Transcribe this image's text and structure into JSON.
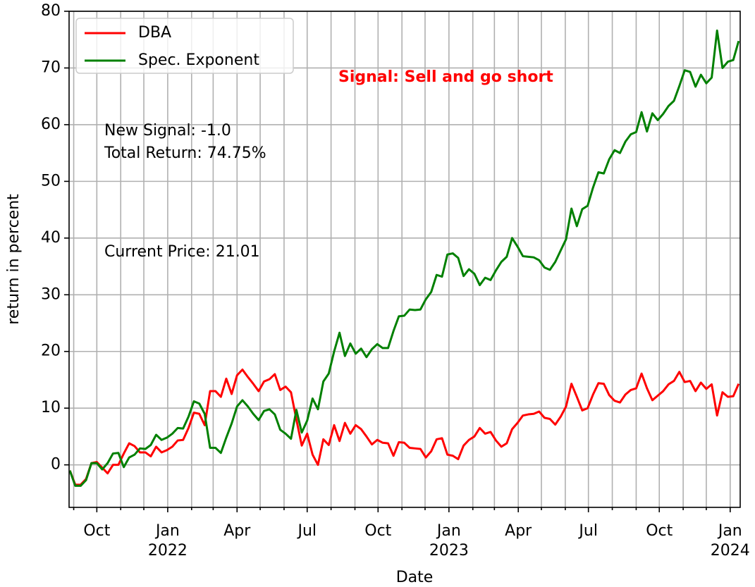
{
  "chart_data": {
    "type": "line",
    "xlabel": "Date",
    "ylabel": "return in percent",
    "legend": "upper left",
    "grid": true,
    "annotations": [
      {
        "text": "Signal: Sell and go short",
        "color": "#ff0000",
        "bold": true
      },
      {
        "text": "New Signal: -1.0"
      },
      {
        "text": "Total Return: 74.75%"
      },
      {
        "text": "Current Price: 21.01"
      }
    ],
    "xlim": [
      "2021-08-26",
      "2024-01-14"
    ],
    "ylim": [
      -7.5,
      80
    ],
    "yticks": [
      0,
      10,
      20,
      30,
      40,
      50,
      60,
      70,
      80
    ],
    "xticks": [
      {
        "value": "2021-10-01",
        "label": "Oct"
      },
      {
        "value": "2022-01-01",
        "label": "Jan",
        "year": "2022"
      },
      {
        "value": "2022-04-01",
        "label": "Apr"
      },
      {
        "value": "2022-07-01",
        "label": "Jul"
      },
      {
        "value": "2022-10-01",
        "label": "Oct"
      },
      {
        "value": "2023-01-01",
        "label": "Jan",
        "year": "2023"
      },
      {
        "value": "2023-04-01",
        "label": "Apr"
      },
      {
        "value": "2023-07-01",
        "label": "Jul"
      },
      {
        "value": "2023-10-01",
        "label": "Oct"
      },
      {
        "value": "2024-01-01",
        "label": "Jan",
        "year": "2024"
      }
    ],
    "xminor": [
      "2021-09-01",
      "2021-11-01",
      "2021-12-01",
      "2022-02-01",
      "2022-03-01",
      "2022-05-01",
      "2022-06-01",
      "2022-08-01",
      "2022-09-01",
      "2022-11-01",
      "2022-12-01",
      "2023-02-01",
      "2023-03-01",
      "2023-05-01",
      "2023-06-01",
      "2023-08-01",
      "2023-09-01",
      "2023-11-01",
      "2023-12-01"
    ],
    "x": [
      "2021-08-27",
      "2021-09-03",
      "2021-09-10",
      "2021-09-17",
      "2021-09-24",
      "2021-10-01",
      "2021-10-08",
      "2021-10-15",
      "2021-10-22",
      "2021-10-29",
      "2021-11-05",
      "2021-11-12",
      "2021-11-19",
      "2021-11-26",
      "2021-12-03",
      "2021-12-10",
      "2021-12-17",
      "2021-12-24",
      "2021-12-31",
      "2022-01-07",
      "2022-01-14",
      "2022-01-21",
      "2022-01-28",
      "2022-02-04",
      "2022-02-11",
      "2022-02-18",
      "2022-02-25",
      "2022-03-04",
      "2022-03-11",
      "2022-03-18",
      "2022-03-25",
      "2022-04-01",
      "2022-04-08",
      "2022-04-15",
      "2022-04-22",
      "2022-04-29",
      "2022-05-06",
      "2022-05-13",
      "2022-05-20",
      "2022-05-27",
      "2022-06-03",
      "2022-06-10",
      "2022-06-17",
      "2022-06-24",
      "2022-07-01",
      "2022-07-08",
      "2022-07-15",
      "2022-07-22",
      "2022-07-29",
      "2022-08-05",
      "2022-08-12",
      "2022-08-19",
      "2022-08-26",
      "2022-09-02",
      "2022-09-09",
      "2022-09-16",
      "2022-09-23",
      "2022-09-30",
      "2022-10-07",
      "2022-10-14",
      "2022-10-21",
      "2022-10-28",
      "2022-11-04",
      "2022-11-11",
      "2022-11-18",
      "2022-11-25",
      "2022-12-02",
      "2022-12-09",
      "2022-12-16",
      "2022-12-23",
      "2022-12-30",
      "2023-01-06",
      "2023-01-13",
      "2023-01-20",
      "2023-01-27",
      "2023-02-03",
      "2023-02-10",
      "2023-02-17",
      "2023-02-24",
      "2023-03-03",
      "2023-03-10",
      "2023-03-17",
      "2023-03-24",
      "2023-03-31",
      "2023-04-07",
      "2023-04-14",
      "2023-04-21",
      "2023-04-28",
      "2023-05-05",
      "2023-05-12",
      "2023-05-19",
      "2023-05-26",
      "2023-06-02",
      "2023-06-09",
      "2023-06-16",
      "2023-06-23",
      "2023-06-30",
      "2023-07-07",
      "2023-07-14",
      "2023-07-21",
      "2023-07-28",
      "2023-08-04",
      "2023-08-11",
      "2023-08-18",
      "2023-08-25",
      "2023-09-01",
      "2023-09-08",
      "2023-09-15",
      "2023-09-22",
      "2023-09-29",
      "2023-10-06",
      "2023-10-13",
      "2023-10-20",
      "2023-10-27",
      "2023-11-03",
      "2023-11-10",
      "2023-11-17",
      "2023-11-24",
      "2023-12-01",
      "2023-12-08",
      "2023-12-15",
      "2023-12-22",
      "2023-12-29",
      "2024-01-05",
      "2024-01-12"
    ],
    "series": [
      {
        "name": "DBA",
        "color": "#ff0000",
        "values": [
          -1,
          -3.5,
          -3.5,
          -2.5,
          0.3,
          0.5,
          -0.5,
          -1.5,
          0,
          0,
          2,
          3.8,
          3.3,
          2.2,
          2.2,
          1.5,
          3.2,
          2.2,
          2.6,
          3.2,
          4.3,
          4.4,
          6.5,
          9.2,
          9,
          7,
          13,
          13,
          12,
          15.2,
          12.5,
          15.8,
          16.8,
          15.5,
          14.3,
          13,
          14.7,
          15.1,
          16,
          13.2,
          13.8,
          12.8,
          8,
          3.4,
          5.5,
          1.8,
          0,
          4.5,
          3.5,
          7,
          4.2,
          7.4,
          5.5,
          7,
          6.3,
          5,
          3.6,
          4.4,
          3.9,
          3.8,
          1.6,
          4,
          3.9,
          3,
          2.9,
          2.8,
          1.3,
          2.4,
          4.5,
          4.7,
          1.8,
          1.6,
          1,
          3.4,
          4.4,
          5,
          6.5,
          5.5,
          5.8,
          4.3,
          3.2,
          3.8,
          6.3,
          7.4,
          8.7,
          8.9,
          9,
          9.4,
          8.3,
          8.1,
          7.1,
          8.5,
          10.3,
          14.3,
          12,
          9.6,
          10,
          12.4,
          14.4,
          14.3,
          12.3,
          11.3,
          11,
          12.4,
          13.2,
          13.5,
          16.1,
          13.5,
          11.4,
          12.2,
          13,
          14.2,
          14.8,
          16.4,
          14.6,
          14.8,
          13,
          14.5,
          13.4,
          14.2,
          8.7,
          12.8,
          12,
          12.1,
          14.3
        ]
      },
      {
        "name": "Spec. Exponent",
        "color": "#008000",
        "values": [
          -1,
          -3.7,
          -3.7,
          -2.7,
          0.3,
          0.3,
          -0.8,
          0.3,
          2,
          2.1,
          -0.4,
          1.3,
          1.8,
          2.9,
          2.8,
          3.5,
          5.3,
          4.4,
          4.8,
          5.5,
          6.5,
          6.4,
          8.5,
          11.2,
          10.8,
          9,
          3,
          3,
          2.1,
          4.8,
          7.3,
          10.3,
          11.4,
          10.3,
          9,
          7.9,
          9.5,
          9.8,
          8.9,
          6.2,
          5.5,
          4.6,
          9.7,
          5.7,
          7.8,
          11.7,
          9.8,
          14.7,
          16.1,
          20,
          23.3,
          19.2,
          21.4,
          19.6,
          20.5,
          19,
          20.4,
          21.3,
          20.6,
          20.6,
          23.6,
          26.2,
          26.3,
          27.4,
          27.3,
          27.4,
          29.2,
          30.5,
          33.5,
          33.2,
          37.1,
          37.3,
          36.5,
          33.3,
          34.5,
          33.7,
          31.7,
          33,
          32.6,
          34.3,
          35.8,
          36.7,
          40,
          38.5,
          36.8,
          36.7,
          36.6,
          36.1,
          34.8,
          34.4,
          35.8,
          37.8,
          39.8,
          45.2,
          42.1,
          45.1,
          45.7,
          48.9,
          51.6,
          51.4,
          53.9,
          55.5,
          55,
          57,
          58.3,
          58.7,
          62.2,
          58.8,
          62,
          60.8,
          61.9,
          63.3,
          64.2,
          66.8,
          69.6,
          69.3,
          66.7,
          68.8,
          67.3,
          68.3,
          76.6,
          70,
          71.1,
          71.4,
          74.75
        ]
      }
    ]
  }
}
